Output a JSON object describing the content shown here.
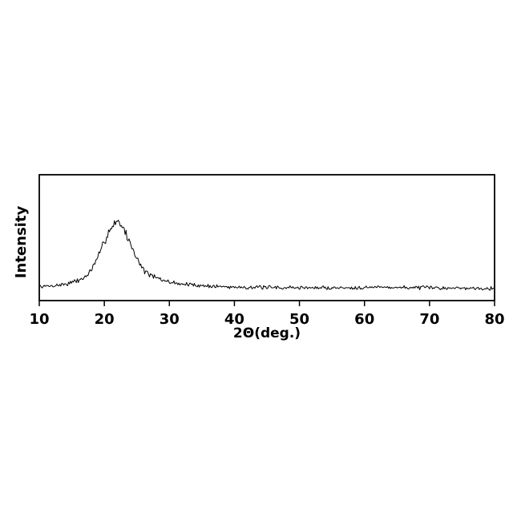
{
  "page": {
    "background": "#ffffff"
  },
  "chart_data": {
    "type": "line",
    "title": "",
    "xlabel": "2Θ(deg.)",
    "ylabel": "Intensity",
    "xlim": [
      10,
      80
    ],
    "ylim": [
      0,
      100
    ],
    "x_ticks": [
      10,
      20,
      30,
      40,
      50,
      60,
      70,
      80
    ],
    "y_ticks": [],
    "grid": false,
    "legend": false,
    "axis_color": "#000000",
    "line_color": "#000000",
    "background_color": "#ffffff",
    "description": "Powder XRD pattern: single broad amorphous halo centered near 2-theta 21.8 deg (FWHM ~6 deg) above a flat noisy background; intensity axis unlabeled (arbitrary units)",
    "peak": {
      "center_2theta_deg": 21.8,
      "fwhm_deg": 6.2,
      "relative_height": 64,
      "baseline_level": 10.5
    },
    "series": [
      {
        "name": "XRD intensity",
        "x": [
          10,
          11,
          12,
          13,
          14,
          15,
          16,
          17,
          18,
          19,
          20,
          21,
          22,
          23,
          24,
          25,
          26,
          27,
          28,
          29,
          30,
          31,
          32,
          33,
          34,
          35,
          36,
          37,
          38,
          39,
          40,
          41,
          42,
          43,
          44,
          45,
          46,
          47,
          48,
          49,
          50,
          51,
          52,
          53,
          54,
          55,
          56,
          57,
          58,
          59,
          60,
          61,
          62,
          63,
          64,
          65,
          66,
          67,
          68,
          69,
          70,
          71,
          72,
          73,
          74,
          75,
          76,
          77,
          78,
          79,
          80
        ],
        "y": [
          11.0,
          11.3,
          11.7,
          12.3,
          13.1,
          14.3,
          16.0,
          18.5,
          24.0,
          34.0,
          47.0,
          58.0,
          64.0,
          57.0,
          45.0,
          34.0,
          24.5,
          20.5,
          18.0,
          16.0,
          14.8,
          13.9,
          13.2,
          12.7,
          12.3,
          11.9,
          11.6,
          11.3,
          11.1,
          10.9,
          10.8,
          10.7,
          10.6,
          10.5,
          10.5,
          10.4,
          10.4,
          10.3,
          10.3,
          10.3,
          10.3,
          10.2,
          10.2,
          10.2,
          10.1,
          10.1,
          10.2,
          10.2,
          10.3,
          10.4,
          10.5,
          10.6,
          10.7,
          10.7,
          10.6,
          10.5,
          10.4,
          10.3,
          10.3,
          10.2,
          10.2,
          10.1,
          10.1,
          10.0,
          10.0,
          10.0,
          9.9,
          9.9,
          9.9,
          9.8,
          9.8
        ]
      }
    ],
    "noise": {
      "amplitude": 1.8,
      "step_deg": 0.15,
      "seed": 7
    }
  }
}
